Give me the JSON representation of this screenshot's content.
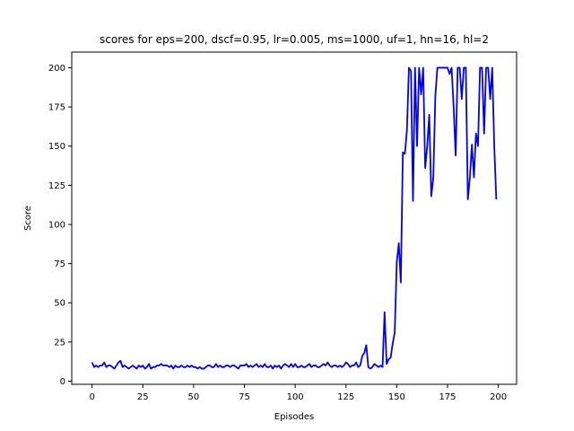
{
  "chart_data": {
    "type": "line",
    "title": "scores for eps=200, dscf=0.95, lr=0.005, ms=1000, uf=1, hn=16, hl=2",
    "xlabel": "Episodes",
    "ylabel": "Score",
    "xlim": [
      -10,
      209
    ],
    "ylim": [
      -2,
      210
    ],
    "xticks": [
      0,
      25,
      50,
      75,
      100,
      125,
      150,
      175,
      200
    ],
    "yticks": [
      0,
      25,
      50,
      75,
      100,
      125,
      150,
      175,
      200
    ],
    "grid": false,
    "line_color": "#0000ff",
    "series": [
      {
        "x": [
          0,
          1,
          2,
          3,
          4,
          5,
          6,
          7,
          8,
          9,
          10,
          11,
          12,
          13,
          14,
          15,
          16,
          17,
          18,
          19,
          20,
          21,
          22,
          23,
          24,
          25,
          26,
          27,
          28,
          29,
          30,
          31,
          32,
          33,
          34,
          35,
          36,
          37,
          38,
          39,
          40,
          41,
          42,
          43,
          44,
          45,
          46,
          47,
          48,
          49,
          50,
          51,
          52,
          53,
          54,
          55,
          56,
          57,
          58,
          59,
          60,
          61,
          62,
          63,
          64,
          65,
          66,
          67,
          68,
          69,
          70,
          71,
          72,
          73,
          74,
          75,
          76,
          77,
          78,
          79,
          80,
          81,
          82,
          83,
          84,
          85,
          86,
          87,
          88,
          89,
          90,
          91,
          92,
          93,
          94,
          95,
          96,
          97,
          98,
          99,
          100,
          101,
          102,
          103,
          104,
          105,
          106,
          107,
          108,
          109,
          110,
          111,
          112,
          113,
          114,
          115,
          116,
          117,
          118,
          119,
          120,
          121,
          122,
          123,
          124,
          125,
          126,
          127,
          128,
          129,
          130,
          131,
          132,
          133,
          134,
          135,
          136,
          137,
          138,
          139,
          140,
          141,
          142,
          143,
          144,
          145,
          146,
          147,
          148,
          149,
          150,
          151,
          152,
          153,
          154,
          155,
          156,
          157,
          158,
          159,
          160,
          161,
          162,
          163,
          164,
          165,
          166,
          167,
          168,
          169,
          170,
          171,
          172,
          173,
          174,
          175,
          176,
          177,
          178,
          179,
          180,
          181,
          182,
          183,
          184,
          185,
          186,
          187,
          188,
          189,
          190,
          191,
          192,
          193,
          194,
          195,
          196,
          197,
          198,
          199
        ],
        "values": [
          12,
          9,
          10,
          9,
          10,
          10,
          12,
          9,
          10,
          10,
          9,
          8,
          10,
          12,
          13,
          9,
          10,
          9,
          8,
          9,
          10,
          9,
          8,
          10,
          9,
          10,
          8,
          9,
          11,
          8,
          9,
          9,
          10,
          10,
          11,
          10,
          10,
          10,
          9,
          10,
          8,
          10,
          9,
          9,
          10,
          9,
          9,
          10,
          9,
          10,
          9,
          9,
          8,
          9,
          8,
          8,
          9,
          10,
          10,
          9,
          9,
          11,
          9,
          10,
          9,
          9,
          10,
          10,
          9,
          10,
          10,
          9,
          8,
          10,
          10,
          10,
          11,
          9,
          10,
          9,
          10,
          11,
          9,
          10,
          9,
          11,
          9,
          9,
          10,
          8,
          10,
          9,
          10,
          8,
          10,
          11,
          10,
          9,
          11,
          9,
          11,
          9,
          9,
          10,
          9,
          9,
          10,
          11,
          9,
          10,
          10,
          9,
          9,
          10,
          11,
          10,
          12,
          10,
          9,
          10,
          10,
          9,
          10,
          9,
          10,
          12,
          11,
          9,
          10,
          10,
          12,
          9,
          10,
          16,
          18,
          23,
          9,
          8,
          9,
          11,
          10,
          9,
          10,
          9,
          44,
          11,
          14,
          15,
          24,
          31,
          76,
          88,
          63,
          146,
          145,
          160,
          200,
          198,
          115,
          200,
          150,
          200,
          183,
          200,
          136,
          150,
          170,
          118,
          130,
          182,
          200,
          200,
          200,
          200,
          200,
          200,
          196,
          200,
          175,
          144,
          200,
          200,
          180,
          200,
          200,
          116,
          130,
          151,
          130,
          158,
          150,
          200,
          200,
          158,
          200,
          200,
          180,
          200,
          150,
          116
        ]
      }
    ]
  }
}
